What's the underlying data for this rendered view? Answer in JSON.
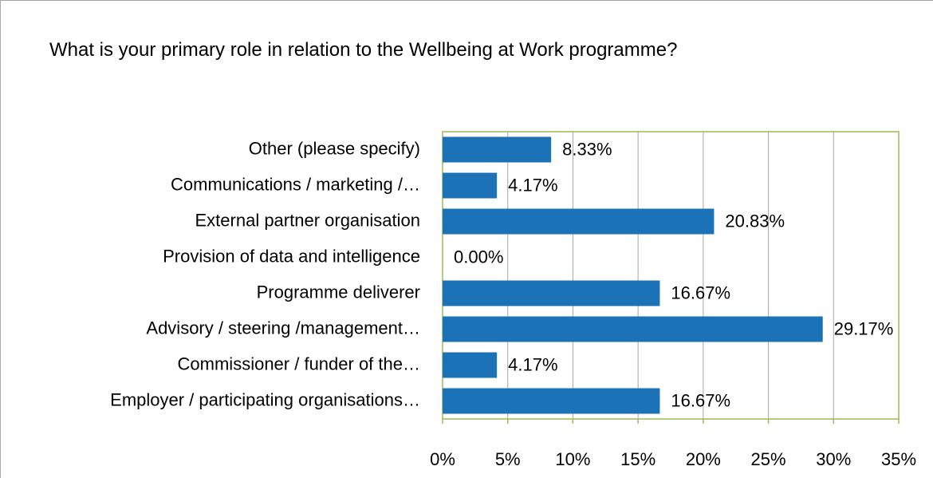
{
  "chart_data": {
    "type": "bar",
    "orientation": "horizontal",
    "title": "What is your primary role in relation to the Wellbeing at Work programme?",
    "categories": [
      "Other (please specify)",
      "Communications / marketing /…",
      "External partner organisation",
      "Provision of data and intelligence",
      "Programme deliverer",
      "Advisory / steering /management…",
      "Commissioner / funder of the…",
      "Employer / participating organisations…"
    ],
    "values": [
      8.33,
      4.17,
      20.83,
      0.0,
      16.67,
      29.17,
      4.17,
      16.67
    ],
    "value_labels": [
      "8.33%",
      "4.17%",
      "20.83%",
      "0.00%",
      "16.67%",
      "29.17%",
      "4.17%",
      "16.67%"
    ],
    "color": "#1b72b6",
    "xlim": [
      0,
      35
    ],
    "xticks": [
      {
        "value": 0,
        "label": "0%"
      },
      {
        "value": 5,
        "label": "5%"
      },
      {
        "value": 10,
        "label": "10%"
      },
      {
        "value": 15,
        "label": "15%"
      },
      {
        "value": 20,
        "label": "20%"
      },
      {
        "value": 25,
        "label": "25%"
      },
      {
        "value": 30,
        "label": "30%"
      },
      {
        "value": 35,
        "label": "35%"
      }
    ],
    "grid": true
  }
}
